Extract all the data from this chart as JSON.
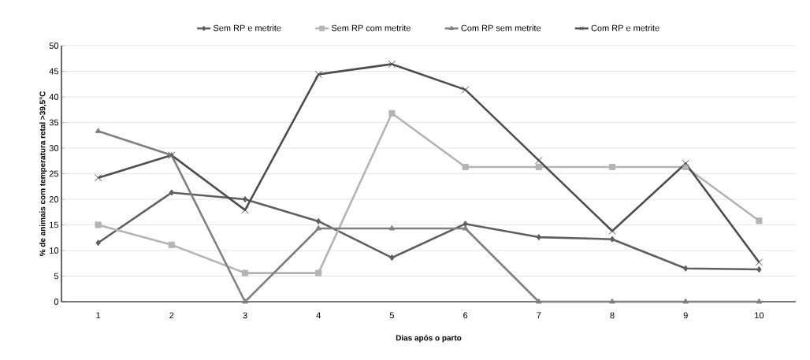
{
  "chart_data": {
    "type": "line",
    "xlabel": "Dias após o parto",
    "ylabel": "% de animais com temperatura retal >39,5°C",
    "categories": [
      "1",
      "2",
      "3",
      "4",
      "5",
      "6",
      "7",
      "8",
      "9",
      "10"
    ],
    "series": [
      {
        "name": "Sem RP e metrite",
        "color": "#5f5f5f",
        "marker": "diamond",
        "values": [
          11.5,
          21.3,
          20,
          15.7,
          8.6,
          15.2,
          12.6,
          12.2,
          6.5,
          6.3
        ]
      },
      {
        "name": "Sem RP com metrite",
        "color": "#b4b4b4",
        "marker": "square",
        "values": [
          15,
          11.1,
          5.6,
          5.6,
          36.8,
          26.3,
          26.3,
          26.3,
          26.3,
          15.8
        ]
      },
      {
        "name": "Com RP sem metrite",
        "color": "#808080",
        "marker": "triangle",
        "values": [
          33.3,
          28.6,
          0,
          14.3,
          14.3,
          14.3,
          0,
          0,
          0,
          0
        ]
      },
      {
        "name": "Com RP e metrite",
        "color": "#4d4d4d",
        "marker": "cross",
        "values": [
          24.2,
          28.6,
          17.9,
          44.4,
          46.4,
          41.4,
          27.6,
          13.8,
          27,
          7.7
        ]
      }
    ],
    "ylim": [
      0,
      50
    ],
    "yticks": [
      0,
      5,
      10,
      15,
      20,
      25,
      30,
      35,
      40,
      45,
      50
    ],
    "grid": "y",
    "legend": "top",
    "line_style": "solid"
  }
}
